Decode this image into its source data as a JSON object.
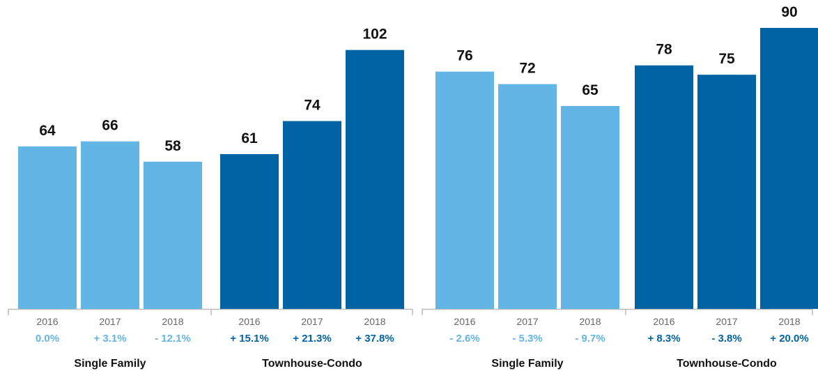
{
  "chart_data": {
    "type": "bar",
    "colors": {
      "single_family": "#62b5e5",
      "townhouse_condo": "#0064a4",
      "axis": "#bbbbbb"
    },
    "panels": [
      {
        "groups": [
          {
            "name": "Single Family",
            "color_key": "single_family",
            "bars": [
              {
                "year": "2016",
                "value": 64,
                "change": "0.0%"
              },
              {
                "year": "2017",
                "value": 66,
                "change": "+ 3.1%"
              },
              {
                "year": "2018",
                "value": 58,
                "change": "- 12.1%"
              }
            ]
          },
          {
            "name": "Townhouse-Condo",
            "color_key": "townhouse_condo",
            "bars": [
              {
                "year": "2016",
                "value": 61,
                "change": "+ 15.1%"
              },
              {
                "year": "2017",
                "value": 74,
                "change": "+ 21.3%"
              },
              {
                "year": "2018",
                "value": 102,
                "change": "+ 37.8%"
              }
            ]
          }
        ]
      },
      {
        "groups": [
          {
            "name": "Single Family",
            "color_key": "single_family",
            "bars": [
              {
                "year": "2016",
                "value": 76,
                "change": "- 2.6%"
              },
              {
                "year": "2017",
                "value": 72,
                "change": "- 5.3%"
              },
              {
                "year": "2018",
                "value": 65,
                "change": "- 9.7%"
              }
            ]
          },
          {
            "name": "Townhouse-Condo",
            "color_key": "townhouse_condo",
            "bars": [
              {
                "year": "2016",
                "value": 78,
                "change": "+ 8.3%"
              },
              {
                "year": "2017",
                "value": 75,
                "change": "- 3.8%"
              },
              {
                "year": "2018",
                "value": 90,
                "change": "+ 20.0%"
              }
            ]
          }
        ]
      }
    ]
  }
}
